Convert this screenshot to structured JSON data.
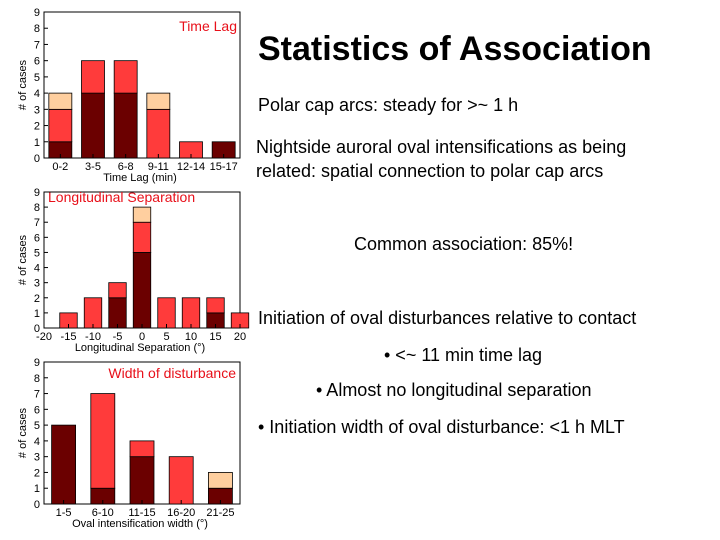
{
  "slide": {
    "title": "Statistics of Association",
    "lines": [
      "Polar cap arcs: steady for >~ 1 h",
      "Nightside auroral oval intensifications as being",
      "related: spatial connection to polar cap arcs",
      "Common association: 85%!",
      "Initiation of oval disturbances relative to contact",
      "• <~ 11 min time lag",
      "• Almost no longitudinal separation",
      "• Initiation width of oval disturbance: <1 h MLT"
    ]
  },
  "colors": {
    "dark": "#6b0000",
    "mid": "#ff3b3b",
    "light": "#ffcf9f",
    "annotation": "#e8101a"
  },
  "chart_data": [
    {
      "type": "bar",
      "stacked": true,
      "annotation": "Time Lag",
      "xlabel": "Time Lag (min)",
      "ylabel": "# of cases",
      "ylim": [
        0,
        9
      ],
      "yticks": [
        "0",
        "1",
        "2",
        "3",
        "4",
        "5",
        "6",
        "7",
        "8",
        "9"
      ],
      "categories": [
        "0-2",
        "3-5",
        "6-8",
        "9-11",
        "12-14",
        "15-17"
      ],
      "series": [
        {
          "values": [
            1,
            4,
            4,
            0,
            0,
            1
          ]
        },
        {
          "values": [
            2,
            2,
            2,
            3,
            1,
            0
          ]
        },
        {
          "values": [
            1,
            0,
            0,
            1,
            0,
            0
          ]
        }
      ]
    },
    {
      "type": "bar",
      "stacked": true,
      "annotation": "Longitudinal Separation",
      "xlabel": "Longitudinal Separation (°)",
      "ylabel": "# of cases",
      "ylim": [
        0,
        9
      ],
      "yticks": [
        "0",
        "1",
        "2",
        "3",
        "4",
        "5",
        "6",
        "7",
        "8",
        "9"
      ],
      "x_tick_labels": [
        "-20",
        "-15",
        "-10",
        "-5",
        "0",
        "5",
        "10",
        "15",
        "20"
      ],
      "categories": [
        "-15",
        "-10",
        "-5",
        "0",
        "5",
        "10",
        "15",
        "20"
      ],
      "series": [
        {
          "values": [
            0,
            0,
            2,
            5,
            0,
            0,
            1,
            0
          ]
        },
        {
          "values": [
            1,
            2,
            1,
            2,
            2,
            2,
            1,
            1
          ]
        },
        {
          "values": [
            0,
            0,
            0,
            1,
            0,
            0,
            0,
            0
          ]
        }
      ]
    },
    {
      "type": "bar",
      "stacked": true,
      "annotation": "Width of disturbance",
      "xlabel": "Oval intensification width (°)",
      "ylabel": "# of cases",
      "ylim": [
        0,
        9
      ],
      "yticks": [
        "0",
        "1",
        "2",
        "3",
        "4",
        "5",
        "6",
        "7",
        "8",
        "9"
      ],
      "categories": [
        "1-5",
        "6-10",
        "11-15",
        "16-20",
        "21-25"
      ],
      "series": [
        {
          "values": [
            5,
            1,
            3,
            0,
            1
          ]
        },
        {
          "values": [
            0,
            6,
            1,
            3,
            0
          ]
        },
        {
          "values": [
            0,
            0,
            0,
            0,
            1
          ]
        }
      ]
    }
  ]
}
